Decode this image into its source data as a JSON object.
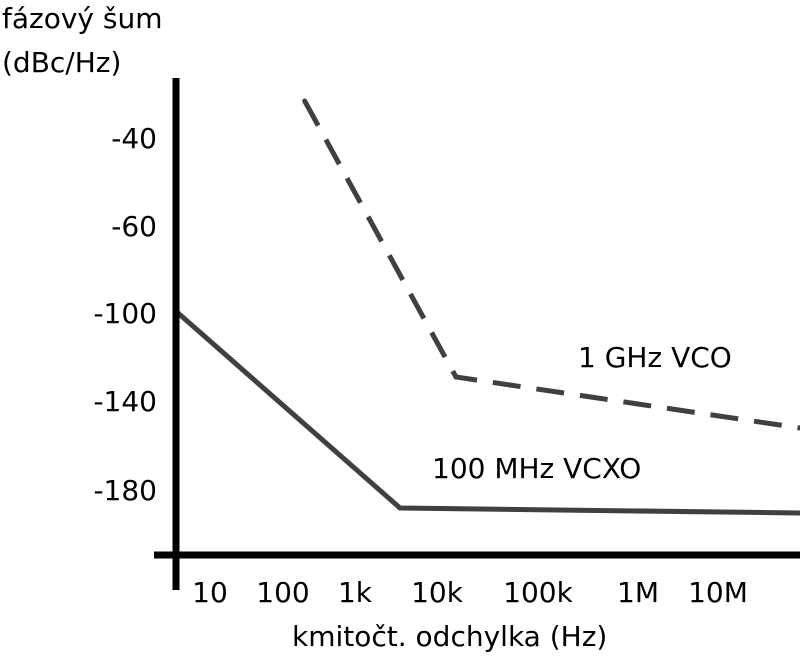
{
  "chart_data": {
    "type": "line",
    "ylabel_line1": "fázový šum",
    "ylabel_line2": "(dBc/Hz)",
    "xlabel": "kmitočt. odchylka (Hz)",
    "x_scale": "log",
    "y_ticks": [
      {
        "label": "-40",
        "value": -40
      },
      {
        "label": "-60",
        "value": -60
      },
      {
        "label": "-100",
        "value": -100
      },
      {
        "label": "-140",
        "value": -140
      },
      {
        "label": "-180",
        "value": -180
      }
    ],
    "x_ticks": [
      {
        "label": "10",
        "value": 10
      },
      {
        "label": "100",
        "value": 100
      },
      {
        "label": "1k",
        "value": 1000
      },
      {
        "label": "10k",
        "value": 10000
      },
      {
        "label": "100k",
        "value": 100000
      },
      {
        "label": "1M",
        "value": 1000000
      },
      {
        "label": "10M",
        "value": 10000000
      }
    ],
    "series": [
      {
        "name": "1 GHz VCO",
        "style": "dashed",
        "color": "#404040",
        "points": [
          {
            "x": 200,
            "y": -30
          },
          {
            "x": 15000,
            "y": -130
          },
          {
            "x": 50000000,
            "y": -158
          }
        ]
      },
      {
        "name": "100 MHz VCXO",
        "style": "solid",
        "color": "#404040",
        "points": [
          {
            "x": 5,
            "y": -100
          },
          {
            "x": 3000,
            "y": -188
          },
          {
            "x": 50000000,
            "y": -190
          }
        ]
      }
    ]
  }
}
